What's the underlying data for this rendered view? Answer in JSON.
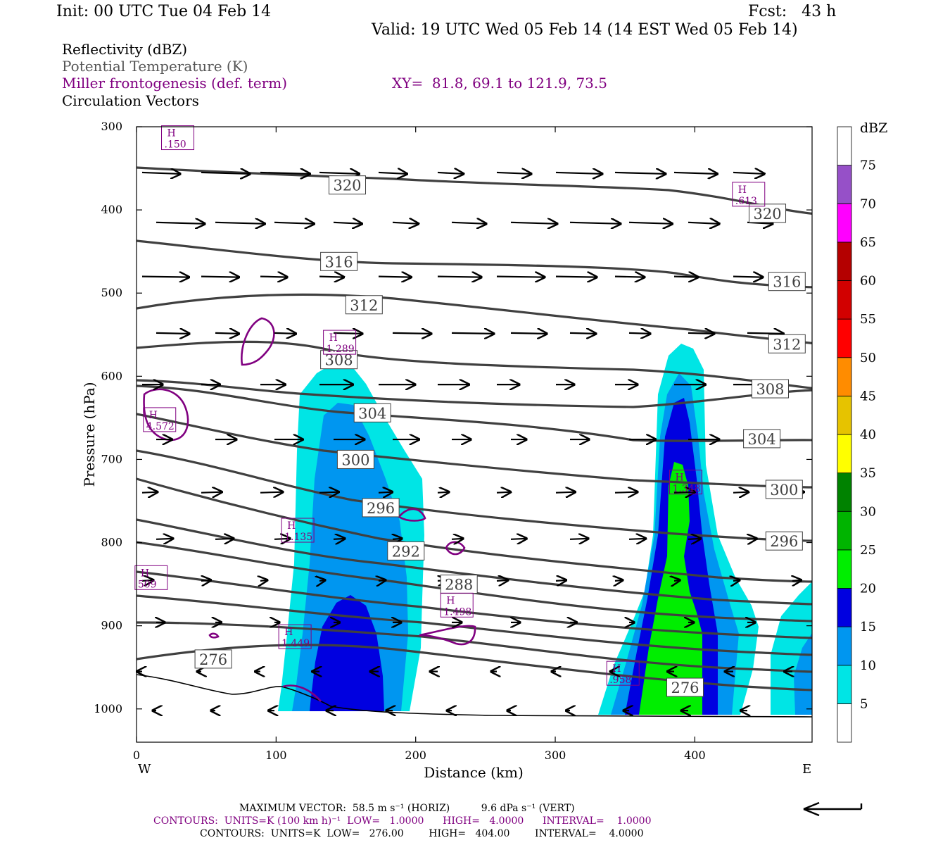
{
  "header": {
    "init": "Init: 00 UTC Tue 04 Feb 14",
    "fcst": "Fcst:   43 h",
    "valid": "Valid: 19 UTC Wed 05 Feb 14 (14 EST Wed 05 Feb 14)"
  },
  "titles": {
    "reflectivity": "Reflectivity (dBZ)",
    "theta": "Potential Temperature (K)",
    "miller": "Miller frontogenesis (def. term)",
    "xy": "XY=  81.8, 69.1 to 121.9, 73.5",
    "vectors": "Circulation Vectors"
  },
  "colors": {
    "ref": [
      "#ffffff",
      "#00e5e5",
      "#0096f0",
      "#0000e0",
      "#00ee00",
      "#00b400",
      "#008200",
      "#ffff00",
      "#e6c300",
      "#ff8c00",
      "#ff0000",
      "#d20000",
      "#b40000",
      "#ff00ff",
      "#9650c8",
      "#ffffff"
    ],
    "theta": "#404040",
    "miller": "#800080"
  },
  "chart_data": {
    "type": "cross-section",
    "xlabel": "Distance (km)",
    "ylabel": "Pressure (hPa)",
    "xlim": [
      0,
      484
    ],
    "ylim": [
      1040,
      300
    ],
    "x_ticks": [
      0,
      100,
      200,
      300,
      400
    ],
    "y_ticks": [
      300,
      400,
      500,
      600,
      700,
      800,
      900,
      1000
    ],
    "x_ends": [
      "W",
      "E"
    ],
    "colorbar": {
      "unit": "dBZ",
      "labels": [
        "5",
        "10",
        "15",
        "20",
        "25",
        "30",
        "35",
        "40",
        "45",
        "50",
        "55",
        "60",
        "65",
        "70",
        "75"
      ]
    },
    "theta_labels": [
      {
        "v": "320",
        "x": 151,
        "p": 370
      },
      {
        "v": "320",
        "x": 452,
        "p": 404
      },
      {
        "v": "316",
        "x": 145,
        "p": 462
      },
      {
        "v": "316",
        "x": 466,
        "p": 486
      },
      {
        "v": "312",
        "x": 163,
        "p": 514
      },
      {
        "v": "312",
        "x": 466,
        "p": 561
      },
      {
        "v": "308",
        "x": 145,
        "p": 580
      },
      {
        "v": "308",
        "x": 454,
        "p": 615
      },
      {
        "v": "304",
        "x": 169,
        "p": 644
      },
      {
        "v": "304",
        "x": 448,
        "p": 675
      },
      {
        "v": "300",
        "x": 157,
        "p": 700
      },
      {
        "v": "300",
        "x": 464,
        "p": 736
      },
      {
        "v": "296",
        "x": 175,
        "p": 758
      },
      {
        "v": "296",
        "x": 464,
        "p": 798
      },
      {
        "v": "292",
        "x": 193,
        "p": 810
      },
      {
        "v": "288",
        "x": 231,
        "p": 850
      },
      {
        "v": "276",
        "x": 55,
        "p": 940
      },
      {
        "v": "276",
        "x": 393,
        "p": 974
      }
    ],
    "miller_maxima": [
      {
        "h": "H",
        "v": ".150",
        "x": 29,
        "p": 314
      },
      {
        "h": "H",
        "v": ".613",
        "x": 438,
        "p": 382
      },
      {
        "h": "H",
        "v": "1.289",
        "x": 145,
        "p": 560
      },
      {
        "h": "H",
        "v": "4.572",
        "x": 16,
        "p": 653
      },
      {
        "h": "H",
        "v": "1.348",
        "x": 393,
        "p": 728
      },
      {
        "h": "H",
        "v": "1.135",
        "x": 115,
        "p": 786
      },
      {
        "h": "H",
        "v": "509",
        "x": 10,
        "p": 843
      },
      {
        "h": "H",
        "v": "1.498",
        "x": 229,
        "p": 876
      },
      {
        "h": "H",
        "v": "1.449",
        "x": 113,
        "p": 914
      },
      {
        "h": "H",
        "v": ".958",
        "x": 348,
        "p": 958
      }
    ]
  },
  "footer": {
    "max_vector": "MAXIMUM VECTOR:  58.5 m s⁻¹ (HORIZ)          9.6 dPa s⁻¹ (VERT)",
    "contours1": "CONTOURS:  UNITS=K (100 km h)⁻¹  LOW=   1.0000      HIGH=   4.0000      INTERVAL=    1.0000",
    "contours2": "CONTOURS:  UNITS=K  LOW=   276.00        HIGH=   404.00        INTERVAL=    4.0000"
  }
}
